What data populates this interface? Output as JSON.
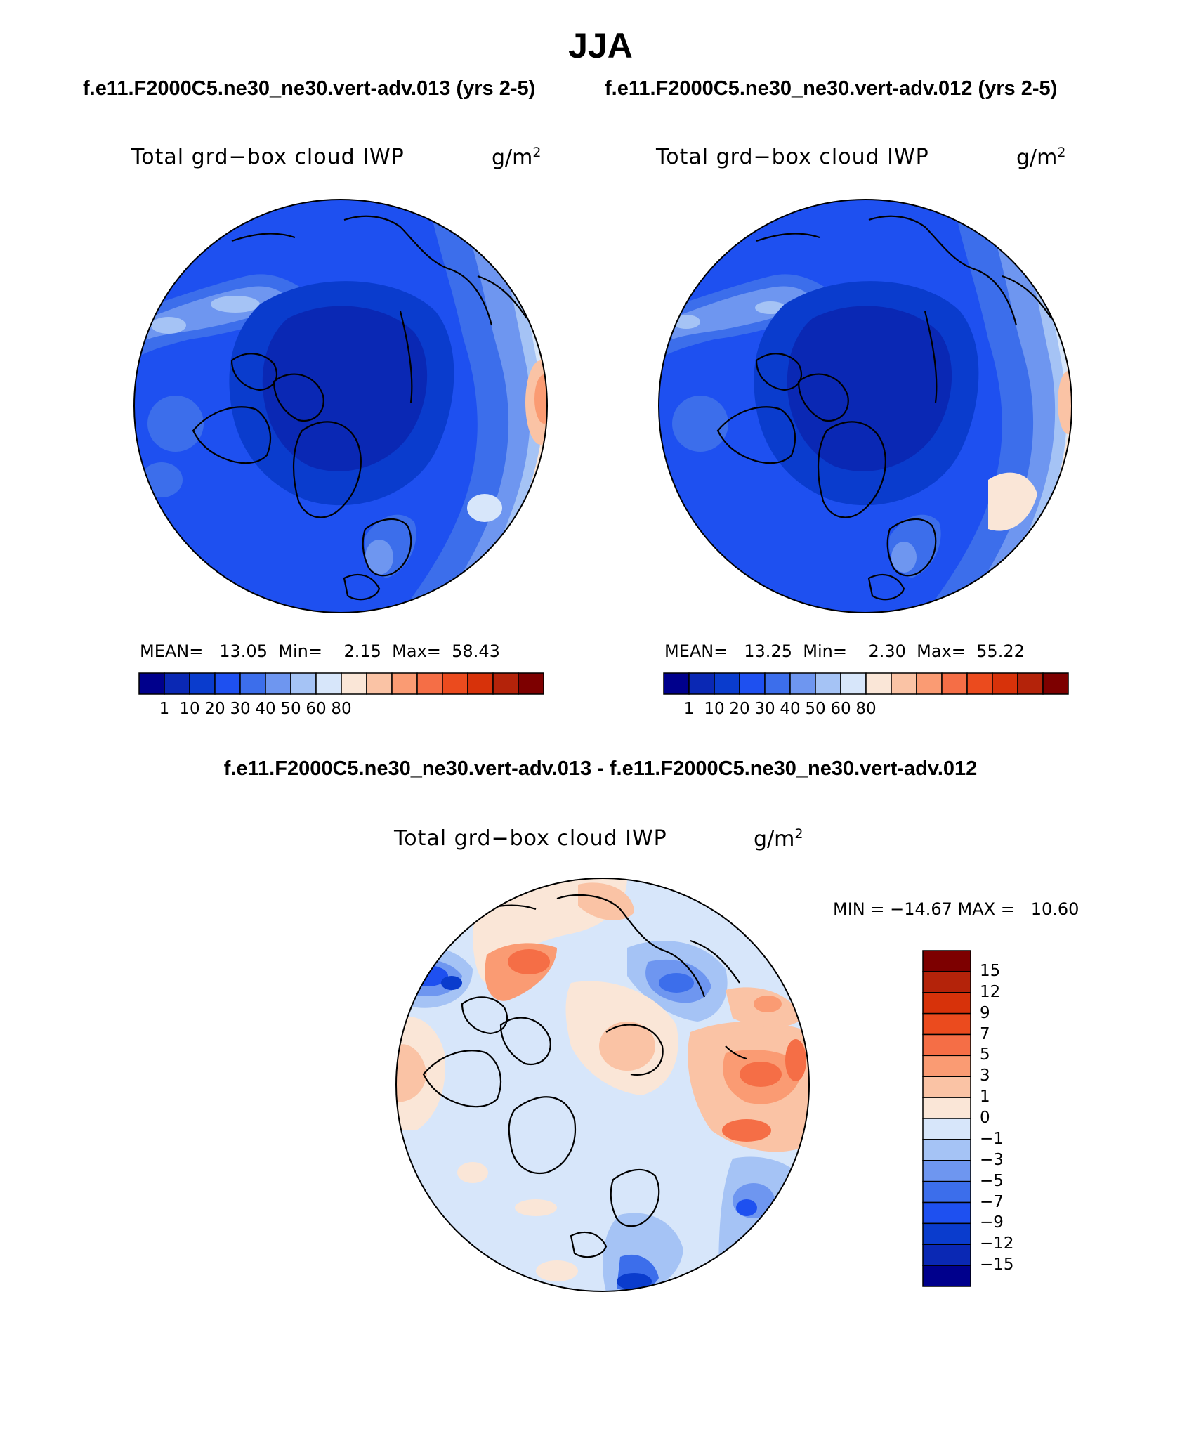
{
  "title": "JJA",
  "left_header": "f.e11.F2000C5.ne30_ne30.vert-adv.013 (yrs 2-5)",
  "right_header": "f.e11.F2000C5.ne30_ne30.vert-adv.012 (yrs 2-5)",
  "diff_header": "f.e11.F2000C5.ne30_ne30.vert-adv.013 - f.e11.F2000C5.ne30_ne30.vert-adv.012",
  "panels": [
    {
      "label": "Total grd−box cloud IWP",
      "unit_base": "g/m",
      "unit_exp": "2",
      "stats": {
        "mean_label": "MEAN=",
        "mean": "13.05",
        "min_label": "Min=",
        "min": "2.15",
        "max_label": "Max=",
        "max": "58.43"
      },
      "colorbar_ticks": [
        "1",
        "10",
        "20",
        "30",
        "40",
        "50",
        "60",
        "80"
      ]
    },
    {
      "label": "Total grd−box cloud IWP",
      "unit_base": "g/m",
      "unit_exp": "2",
      "stats": {
        "mean_label": "MEAN=",
        "mean": "13.25",
        "min_label": "Min=",
        "min": "2.30",
        "max_label": "Max=",
        "max": "55.22"
      },
      "colorbar_ticks": [
        "1",
        "10",
        "20",
        "30",
        "40",
        "50",
        "60",
        "80"
      ]
    },
    {
      "label": "Total grd−box cloud IWP",
      "unit_base": "g/m",
      "unit_exp": "2",
      "stats_text": "MIN = −14.67 MAX =   10.60",
      "colorbar_ticks": [
        "15",
        "12",
        "9",
        "7",
        "5",
        "3",
        "1",
        "0",
        "−1",
        "−3",
        "−5",
        "−7",
        "−9",
        "−12",
        "−15"
      ]
    }
  ],
  "colors": {
    "abs_palette": [
      "#00008c",
      "#0a28b4",
      "#0a3ccd",
      "#1e50f0",
      "#3c6eeb",
      "#6e96f0",
      "#a5c3f5",
      "#d7e6fa",
      "#fae6d7",
      "#fac3a5",
      "#fa9b73",
      "#f56e46",
      "#eb4b1e",
      "#d7320a",
      "#b4230a",
      "#7d0000"
    ],
    "diff_palette": [
      "#00008c",
      "#0a28b4",
      "#0a3ccd",
      "#1e50f0",
      "#3c6eeb",
      "#6e96f0",
      "#a5c3f5",
      "#d7e6fa",
      "#fae6d7",
      "#fac3a5",
      "#fa9b73",
      "#f56e46",
      "#eb4b1e",
      "#d7320a",
      "#b4230a",
      "#7d0000"
    ]
  }
}
